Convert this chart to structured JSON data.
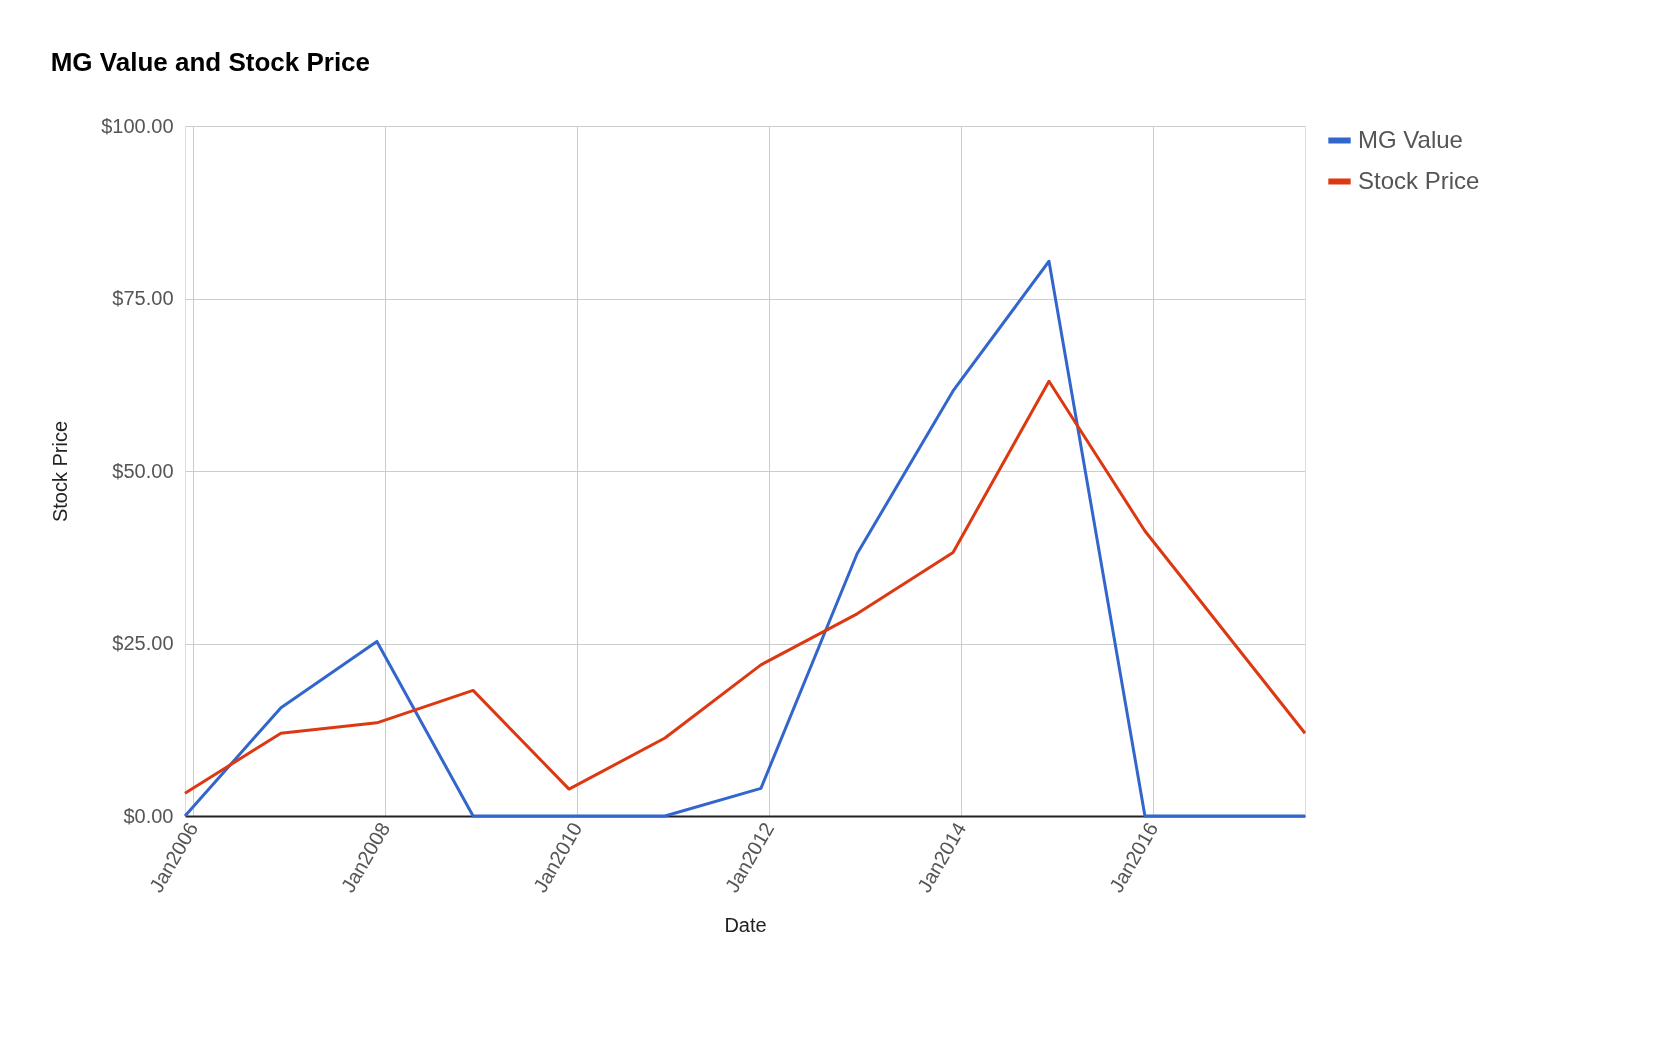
{
  "chart_data": {
    "type": "line",
    "title": "MG Value and Stock Price",
    "xlabel": "Date",
    "ylabel": "Stock Price",
    "x": [
      "2005-12",
      "2006-12",
      "2007-12",
      "2008-12",
      "2009-12",
      "2010-12",
      "2011-12",
      "2012-12",
      "2013-12",
      "2014-12",
      "2015-12",
      "2017-08"
    ],
    "series": [
      {
        "name": "MG Value",
        "color": "#3366cc",
        "values": [
          0,
          15.7,
          25.3,
          0,
          0,
          0,
          4.0,
          38.0,
          61.6,
          80.4,
          0,
          0
        ]
      },
      {
        "name": "Stock Price",
        "color": "#dc3912",
        "values": [
          3.3,
          12.0,
          13.5,
          18.2,
          3.9,
          11.3,
          21.9,
          29.3,
          38.2,
          63.0,
          41.3,
          12.0
        ]
      }
    ],
    "xlim": [
      "2005-12",
      "2017-08"
    ],
    "xticks": [
      {
        "value": "2006-01",
        "label": "Jan2006"
      },
      {
        "value": "2008-01",
        "label": "Jan2008"
      },
      {
        "value": "2010-01",
        "label": "Jan2010"
      },
      {
        "value": "2012-01",
        "label": "Jan2012"
      },
      {
        "value": "2014-01",
        "label": "Jan2014"
      },
      {
        "value": "2016-01",
        "label": "Jan2016"
      }
    ],
    "ylim": [
      0,
      100
    ],
    "yticks": [
      {
        "value": 0,
        "label": "$0.00"
      },
      {
        "value": 25,
        "label": "$25.00"
      },
      {
        "value": 50,
        "label": "$50.00"
      },
      {
        "value": 75,
        "label": "$75.00"
      },
      {
        "value": 100,
        "label": "$100.00"
      }
    ],
    "grid": true,
    "legend": "top right",
    "marker": "none",
    "line_style": "solid"
  }
}
